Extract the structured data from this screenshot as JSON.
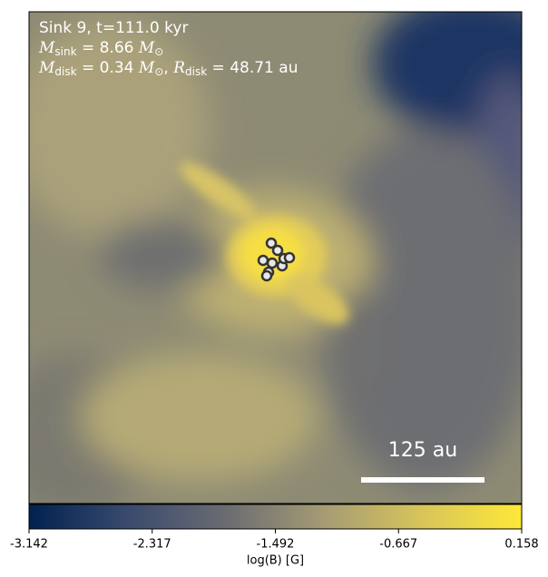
{
  "chart_data": {
    "type": "image",
    "annotations": [
      [
        "Sink 9, t=111.0 kyr"
      ],
      [
        "M",
        "sink",
        " = 8.66 ",
        "M",
        "⊙"
      ],
      [
        "M",
        "disk",
        " = 0.34 ",
        "M",
        "⊙",
        ", ",
        "R",
        "disk",
        " = 48.71 au"
      ]
    ],
    "scale_bar_label": "125 au",
    "colorbar": {
      "label": "log(B) [G]",
      "clim": [
        -3.142,
        0.158
      ],
      "ticks": [
        -3.142,
        -2.317,
        -1.492,
        -0.667,
        0.158
      ],
      "colors": [
        "#00224e",
        "#3a4a6e",
        "#6b6c71",
        "#a59c74",
        "#d8c55a",
        "#fee838"
      ]
    }
  }
}
